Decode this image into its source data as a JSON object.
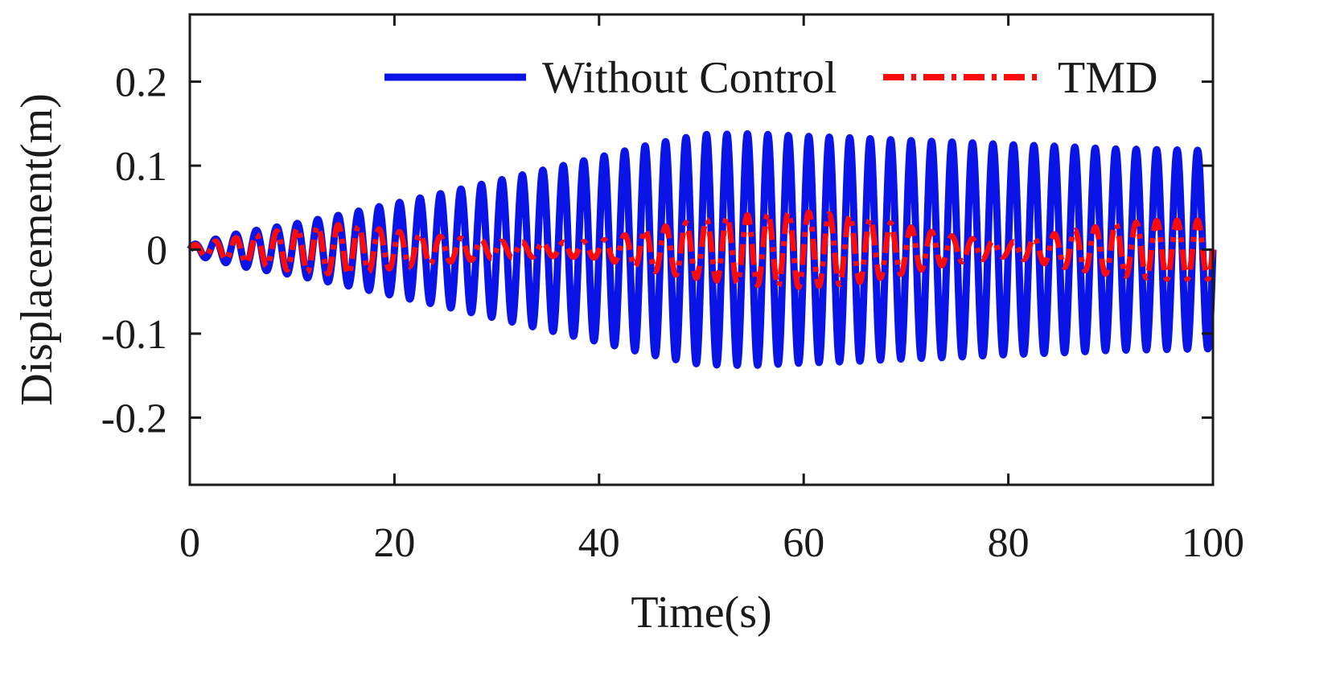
{
  "chart_data": {
    "type": "line",
    "title": "",
    "xlabel": "Time(s)",
    "ylabel": "Displacement(m)",
    "xlim": [
      0,
      100
    ],
    "ylim": [
      -0.28,
      0.28
    ],
    "xticks": [
      0,
      20,
      40,
      60,
      80,
      100
    ],
    "xtick_labels": [
      "0",
      "20",
      "40",
      "60",
      "80",
      "100"
    ],
    "yticks": [
      0.2,
      0.1,
      0,
      -0.1,
      -0.2
    ],
    "ytick_labels": [
      "0.2",
      "0.1",
      "0",
      "-0.1",
      "-0.2"
    ],
    "grid": false,
    "legend_position": "top-right",
    "series": [
      {
        "name": "Without Control",
        "color": "#0a14e6",
        "style": "solid",
        "period_s": 2.0,
        "envelope_t": [
          0,
          5,
          10,
          15,
          20,
          25,
          30,
          35,
          40,
          45,
          50,
          55,
          60,
          65,
          70,
          75,
          80,
          85,
          90,
          95,
          100
        ],
        "envelope_amp": [
          0.005,
          0.02,
          0.03,
          0.042,
          0.055,
          0.068,
          0.082,
          0.096,
          0.11,
          0.125,
          0.137,
          0.138,
          0.135,
          0.133,
          0.13,
          0.128,
          0.125,
          0.123,
          0.12,
          0.119,
          0.118
        ]
      },
      {
        "name": "TMD",
        "color": "#ff0a0a",
        "style": "dash-dot",
        "period_s": 2.0,
        "envelope_t": [
          0,
          5,
          10,
          15,
          20,
          25,
          30,
          35,
          40,
          45,
          50,
          55,
          60,
          65,
          70,
          75,
          80,
          85,
          90,
          95,
          100
        ],
        "envelope_amp": [
          0.005,
          0.015,
          0.025,
          0.03,
          0.022,
          0.015,
          0.01,
          0.008,
          0.01,
          0.025,
          0.035,
          0.042,
          0.045,
          0.04,
          0.028,
          0.015,
          0.008,
          0.02,
          0.03,
          0.035,
          0.035
        ]
      }
    ]
  }
}
